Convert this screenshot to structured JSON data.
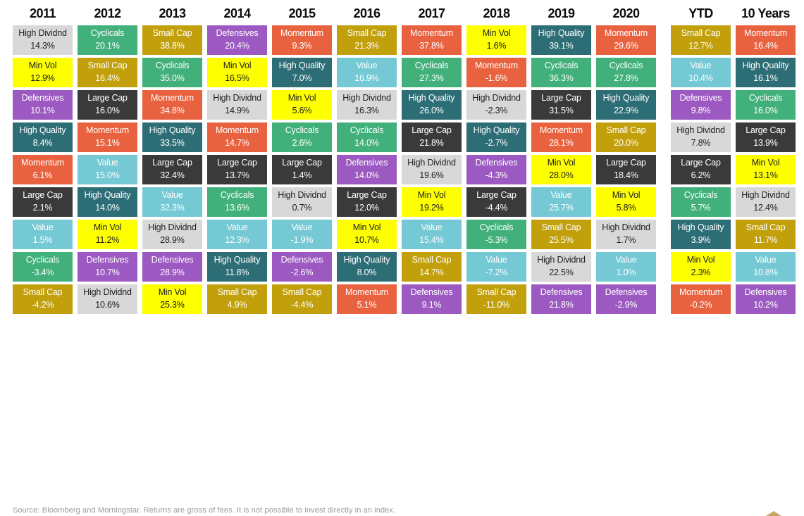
{
  "page": {
    "footer_source": "Source: Bloomberg and Morningstar. Returns are gross of fees. It is not possible to invest directly in an index."
  },
  "factor_styles": {
    "High Dividnd": {
      "bg": "#d8d8d8",
      "fg": "#1e1e1e"
    },
    "Min Vol": {
      "bg": "#feff00",
      "fg": "#1e1e1e"
    },
    "Defensives": {
      "bg": "#9b59c1",
      "fg": "#ffffff"
    },
    "High Quality": {
      "bg": "#2d6d75",
      "fg": "#ffffff"
    },
    "Momentum": {
      "bg": "#e9623f",
      "fg": "#ffffff"
    },
    "Large Cap": {
      "bg": "#3a3a3a",
      "fg": "#ffffff"
    },
    "Value": {
      "bg": "#74c9d4",
      "fg": "#ffffff"
    },
    "Cyclicals": {
      "bg": "#41b07a",
      "fg": "#ffffff"
    },
    "Small Cap": {
      "bg": "#c2a00c",
      "fg": "#ffffff"
    }
  },
  "logo": {
    "name": "gold-peak-logo",
    "color": "#c7a566"
  },
  "chart_data": {
    "type": "table",
    "description": "Factor index returns ranked best to worst within each period",
    "value_format": "percent_one_decimal",
    "legend_position": "none",
    "grid": false,
    "columns": [
      {
        "label": "2011",
        "separated": false,
        "ranked": [
          {
            "name": "High Dividnd",
            "value": 14.3
          },
          {
            "name": "Min Vol",
            "value": 12.9
          },
          {
            "name": "Defensives",
            "value": 10.1
          },
          {
            "name": "High Quality",
            "value": 8.4
          },
          {
            "name": "Momentum",
            "value": 6.1
          },
          {
            "name": "Large Cap",
            "value": 2.1
          },
          {
            "name": "Value",
            "value": 1.5
          },
          {
            "name": "Cyclicals",
            "value": -3.4
          },
          {
            "name": "Small Cap",
            "value": -4.2
          }
        ]
      },
      {
        "label": "2012",
        "separated": false,
        "ranked": [
          {
            "name": "Cyclicals",
            "value": 20.1
          },
          {
            "name": "Small Cap",
            "value": 16.4
          },
          {
            "name": "Large Cap",
            "value": 16.0
          },
          {
            "name": "Momentum",
            "value": 15.1
          },
          {
            "name": "Value",
            "value": 15.0
          },
          {
            "name": "High Quality",
            "value": 14.0
          },
          {
            "name": "Min Vol",
            "value": 11.2
          },
          {
            "name": "Defensives",
            "value": 10.7
          },
          {
            "name": "High Dividnd",
            "value": 10.6
          }
        ]
      },
      {
        "label": "2013",
        "separated": false,
        "ranked": [
          {
            "name": "Small Cap",
            "value": 38.8
          },
          {
            "name": "Cyclicals",
            "value": 35.0
          },
          {
            "name": "Momentum",
            "value": 34.8
          },
          {
            "name": "High Quality",
            "value": 33.5
          },
          {
            "name": "Large Cap",
            "value": 32.4
          },
          {
            "name": "Value",
            "value": 32.3
          },
          {
            "name": "High Dividnd",
            "value": 28.9
          },
          {
            "name": "Defensives",
            "value": 28.9
          },
          {
            "name": "Min Vol",
            "value": 25.3
          }
        ]
      },
      {
        "label": "2014",
        "separated": false,
        "ranked": [
          {
            "name": "Defensives",
            "value": 20.4
          },
          {
            "name": "Min Vol",
            "value": 16.5
          },
          {
            "name": "High Dividnd",
            "value": 14.9
          },
          {
            "name": "Momentum",
            "value": 14.7
          },
          {
            "name": "Large Cap",
            "value": 13.7
          },
          {
            "name": "Cyclicals",
            "value": 13.6
          },
          {
            "name": "Value",
            "value": 12.3
          },
          {
            "name": "High Quality",
            "value": 11.8
          },
          {
            "name": "Small Cap",
            "value": 4.9
          }
        ]
      },
      {
        "label": "2015",
        "separated": false,
        "ranked": [
          {
            "name": "Momentum",
            "value": 9.3
          },
          {
            "name": "High Quality",
            "value": 7.0
          },
          {
            "name": "Min Vol",
            "value": 5.6
          },
          {
            "name": "Cyclicals",
            "value": 2.6
          },
          {
            "name": "Large Cap",
            "value": 1.4
          },
          {
            "name": "High Dividnd",
            "value": 0.7
          },
          {
            "name": "Value",
            "value": -1.9
          },
          {
            "name": "Defensives",
            "value": -2.6
          },
          {
            "name": "Small Cap",
            "value": -4.4
          }
        ]
      },
      {
        "label": "2016",
        "separated": false,
        "ranked": [
          {
            "name": "Small Cap",
            "value": 21.3
          },
          {
            "name": "Value",
            "value": 16.9
          },
          {
            "name": "High Dividnd",
            "value": 16.3
          },
          {
            "name": "Cyclicals",
            "value": 14.0
          },
          {
            "name": "Defensives",
            "value": 14.0
          },
          {
            "name": "Large Cap",
            "value": 12.0
          },
          {
            "name": "Min Vol",
            "value": 10.7
          },
          {
            "name": "High Quality",
            "value": 8.0
          },
          {
            "name": "Momentum",
            "value": 5.1
          }
        ]
      },
      {
        "label": "2017",
        "separated": false,
        "ranked": [
          {
            "name": "Momentum",
            "value": 37.8
          },
          {
            "name": "Cyclicals",
            "value": 27.3
          },
          {
            "name": "High Quality",
            "value": 26.0
          },
          {
            "name": "Large Cap",
            "value": 21.8
          },
          {
            "name": "High Dividnd",
            "value": 19.6
          },
          {
            "name": "Min Vol",
            "value": 19.2
          },
          {
            "name": "Value",
            "value": 15.4
          },
          {
            "name": "Small Cap",
            "value": 14.7
          },
          {
            "name": "Defensives",
            "value": 9.1
          }
        ]
      },
      {
        "label": "2018",
        "separated": false,
        "ranked": [
          {
            "name": "Min Vol",
            "value": 1.6
          },
          {
            "name": "Momentum",
            "value": -1.6
          },
          {
            "name": "High Dividnd",
            "value": -2.3
          },
          {
            "name": "High Quality",
            "value": -2.7
          },
          {
            "name": "Defensives",
            "value": -4.3
          },
          {
            "name": "Large Cap",
            "value": -4.4
          },
          {
            "name": "Cyclicals",
            "value": -5.3
          },
          {
            "name": "Value",
            "value": -7.2
          },
          {
            "name": "Small Cap",
            "value": -11.0
          }
        ]
      },
      {
        "label": "2019",
        "separated": false,
        "ranked": [
          {
            "name": "High Quality",
            "value": 39.1
          },
          {
            "name": "Cyclicals",
            "value": 36.3
          },
          {
            "name": "Large Cap",
            "value": 31.5
          },
          {
            "name": "Momentum",
            "value": 28.1
          },
          {
            "name": "Min Vol",
            "value": 28.0
          },
          {
            "name": "Value",
            "value": 25.7
          },
          {
            "name": "Small Cap",
            "value": 25.5
          },
          {
            "name": "High Dividnd",
            "value": 22.5
          },
          {
            "name": "Defensives",
            "value": 21.8
          }
        ]
      },
      {
        "label": "2020",
        "separated": false,
        "ranked": [
          {
            "name": "Momentum",
            "value": 29.6
          },
          {
            "name": "Cyclicals",
            "value": 27.8
          },
          {
            "name": "High Quality",
            "value": 22.9
          },
          {
            "name": "Small Cap",
            "value": 20.0
          },
          {
            "name": "Large Cap",
            "value": 18.4
          },
          {
            "name": "Min Vol",
            "value": 5.8
          },
          {
            "name": "High Dividnd",
            "value": 1.7
          },
          {
            "name": "Value",
            "value": 1.0
          },
          {
            "name": "Defensives",
            "value": -2.9
          }
        ]
      },
      {
        "label": "YTD",
        "separated": true,
        "ranked": [
          {
            "name": "Small Cap",
            "value": 12.7
          },
          {
            "name": "Value",
            "value": 10.4
          },
          {
            "name": "Defensives",
            "value": 9.8
          },
          {
            "name": "High Dividnd",
            "value": 7.8
          },
          {
            "name": "Large Cap",
            "value": 6.2
          },
          {
            "name": "Cyclicals",
            "value": 5.7
          },
          {
            "name": "High Quality",
            "value": 3.9
          },
          {
            "name": "Min Vol",
            "value": 2.3
          },
          {
            "name": "Momentum",
            "value": -0.2
          }
        ]
      },
      {
        "label": "10 Years",
        "separated": false,
        "ranked": [
          {
            "name": "Momentum",
            "value": 16.4
          },
          {
            "name": "High Quality",
            "value": 16.1
          },
          {
            "name": "Cyclicals",
            "value": 16.0
          },
          {
            "name": "Large Cap",
            "value": 13.9
          },
          {
            "name": "Min Vol",
            "value": 13.1
          },
          {
            "name": "High Dividnd",
            "value": 12.4
          },
          {
            "name": "Small Cap",
            "value": 11.7
          },
          {
            "name": "Value",
            "value": 10.8
          },
          {
            "name": "Defensives",
            "value": 10.2
          }
        ]
      }
    ]
  }
}
